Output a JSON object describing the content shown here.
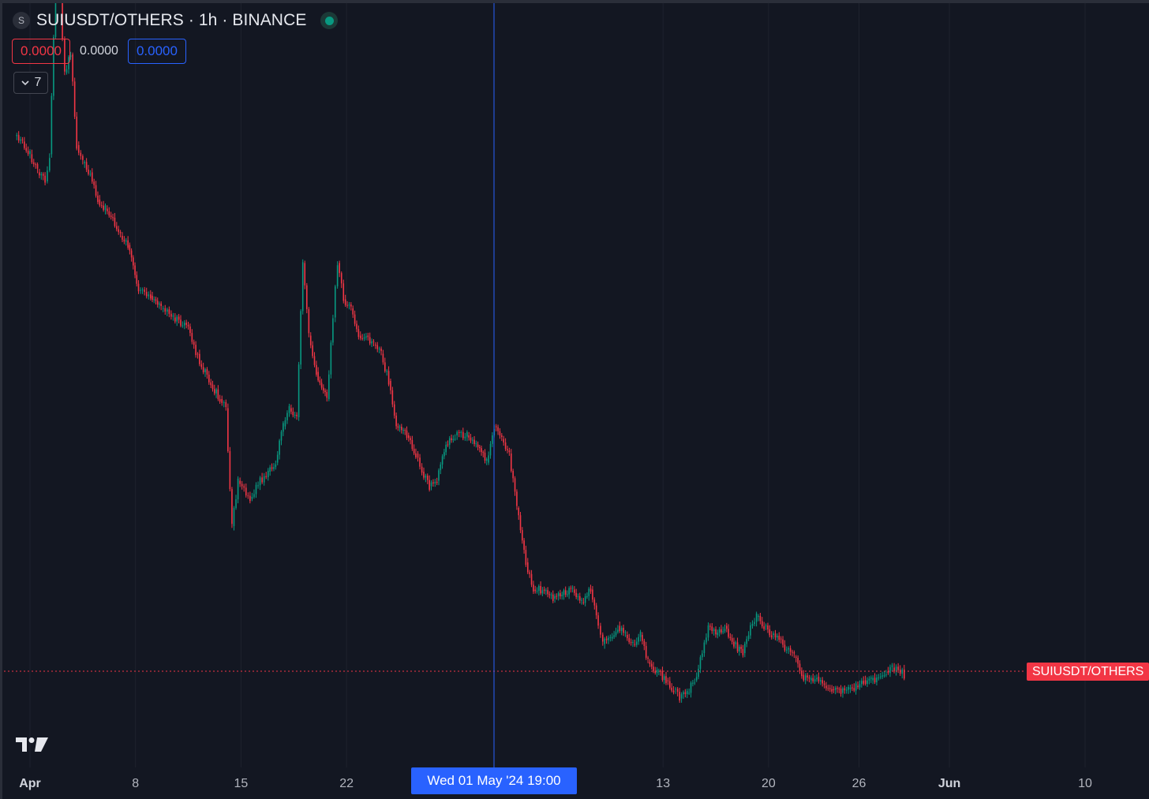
{
  "legend": {
    "symbol_badge": "S",
    "title": "SUIUSDT/OTHERS · 1h · BINANCE",
    "status_icon": "market-open-dot",
    "value_red": "0.0000",
    "value_plain": "0.0000",
    "value_blue": "0.0000",
    "collapse_count": "7"
  },
  "price_label": "SUIUSDT/OTHERS",
  "crosshair_time_label": "Wed 01 May '24   19:00",
  "colors": {
    "background": "#131722",
    "up": "#089981",
    "down": "#f23645",
    "crosshair": "#2962ff",
    "grid": "#1e222d"
  },
  "chart_data": {
    "type": "line",
    "title": "SUIUSDT/OTHERS · 1h · BINANCE",
    "xlabel": "",
    "ylabel": "",
    "x_ticks": [
      {
        "label": "Apr",
        "day": 1,
        "strong": true
      },
      {
        "label": "8",
        "day": 8,
        "strong": false
      },
      {
        "label": "15",
        "day": 15,
        "strong": false
      },
      {
        "label": "22",
        "day": 22,
        "strong": false
      },
      {
        "label": "13",
        "day": 43,
        "strong": false
      },
      {
        "label": "20",
        "day": 50,
        "strong": false
      },
      {
        "label": "26",
        "day": 56,
        "strong": false
      },
      {
        "label": "Jun",
        "day": 62,
        "strong": true
      },
      {
        "label": "10",
        "day": 71,
        "strong": false
      }
    ],
    "grid": true,
    "legend": "none",
    "series": [
      {
        "color": "#f23645",
        "points": [
          [
            0.0,
            1.95
          ],
          [
            0.5,
            1.92
          ],
          [
            1.0,
            1.85
          ],
          [
            1.5,
            1.75
          ],
          [
            2.0,
            1.7
          ],
          [
            2.3,
            1.85
          ],
          [
            2.7,
            2.8
          ],
          [
            3.0,
            2.7
          ],
          [
            3.3,
            2.3
          ],
          [
            3.7,
            2.4
          ],
          [
            4.1,
            1.9
          ],
          [
            4.5,
            1.8
          ],
          [
            5.0,
            1.75
          ],
          [
            5.5,
            1.6
          ],
          [
            6.0,
            1.55
          ],
          [
            6.5,
            1.5
          ],
          [
            7.0,
            1.4
          ],
          [
            7.5,
            1.35
          ],
          [
            8.2,
            1.1
          ],
          [
            9.0,
            1.07
          ],
          [
            9.7,
            1.0
          ],
          [
            10.5,
            0.95
          ],
          [
            11.5,
            0.9
          ],
          [
            12.0,
            0.75
          ],
          [
            13.0,
            0.58
          ],
          [
            13.6,
            0.5
          ],
          [
            14.0,
            0.45
          ],
          [
            14.4,
            -0.2
          ],
          [
            14.8,
            0.05
          ],
          [
            15.6,
            -0.05
          ],
          [
            16.0,
            0.02
          ],
          [
            16.8,
            0.1
          ],
          [
            17.3,
            0.15
          ],
          [
            17.8,
            0.35
          ],
          [
            18.2,
            0.45
          ],
          [
            18.7,
            0.4
          ],
          [
            19.1,
            1.25
          ],
          [
            19.5,
            0.85
          ],
          [
            20.0,
            0.65
          ],
          [
            20.7,
            0.5
          ],
          [
            21.1,
            0.95
          ],
          [
            21.4,
            1.25
          ],
          [
            21.8,
            1.05
          ],
          [
            22.3,
            1.0
          ],
          [
            22.8,
            0.85
          ],
          [
            23.3,
            0.85
          ],
          [
            23.8,
            0.8
          ],
          [
            24.3,
            0.75
          ],
          [
            24.8,
            0.6
          ],
          [
            25.3,
            0.35
          ],
          [
            26.0,
            0.3
          ],
          [
            26.6,
            0.2
          ],
          [
            27.0,
            0.1
          ],
          [
            27.5,
            0.02
          ],
          [
            28.0,
            0.05
          ],
          [
            28.6,
            0.25
          ],
          [
            29.2,
            0.3
          ],
          [
            30.0,
            0.3
          ],
          [
            30.6,
            0.25
          ],
          [
            31.3,
            0.15
          ],
          [
            31.8,
            0.35
          ],
          [
            32.3,
            0.28
          ],
          [
            32.8,
            0.2
          ],
          [
            33.3,
            -0.1
          ],
          [
            33.9,
            -0.4
          ],
          [
            34.4,
            -0.55
          ],
          [
            35.0,
            -0.55
          ],
          [
            35.7,
            -0.6
          ],
          [
            36.3,
            -0.58
          ],
          [
            37.0,
            -0.55
          ],
          [
            37.6,
            -0.62
          ],
          [
            38.2,
            -0.55
          ],
          [
            38.7,
            -0.75
          ],
          [
            39.0,
            -0.85
          ],
          [
            39.5,
            -0.82
          ],
          [
            40.0,
            -0.75
          ],
          [
            40.5,
            -0.8
          ],
          [
            41.0,
            -0.85
          ],
          [
            41.5,
            -0.8
          ],
          [
            42.0,
            -0.95
          ],
          [
            42.6,
            -1.0
          ],
          [
            43.2,
            -1.05
          ],
          [
            43.7,
            -1.1
          ],
          [
            44.1,
            -1.15
          ],
          [
            44.6,
            -1.12
          ],
          [
            45.1,
            -1.05
          ],
          [
            45.6,
            -0.9
          ],
          [
            46.0,
            -0.75
          ],
          [
            46.5,
            -0.8
          ],
          [
            47.1,
            -0.75
          ],
          [
            47.7,
            -0.85
          ],
          [
            48.3,
            -0.9
          ],
          [
            48.8,
            -0.75
          ],
          [
            49.2,
            -0.7
          ],
          [
            49.7,
            -0.75
          ],
          [
            50.2,
            -0.8
          ],
          [
            50.7,
            -0.82
          ],
          [
            51.2,
            -0.88
          ],
          [
            51.7,
            -0.92
          ],
          [
            52.2,
            -1.02
          ],
          [
            52.7,
            -1.05
          ],
          [
            53.2,
            -1.03
          ],
          [
            53.7,
            -1.08
          ],
          [
            54.2,
            -1.1
          ],
          [
            54.8,
            -1.12
          ],
          [
            55.3,
            -1.1
          ],
          [
            55.8,
            -1.08
          ],
          [
            56.3,
            -1.05
          ],
          [
            56.8,
            -1.05
          ],
          [
            57.3,
            -1.03
          ],
          [
            57.8,
            -1.0
          ],
          [
            58.2,
            -0.98
          ],
          [
            58.6,
            -0.99
          ],
          [
            59.0,
            -1.02
          ]
        ]
      }
    ]
  }
}
